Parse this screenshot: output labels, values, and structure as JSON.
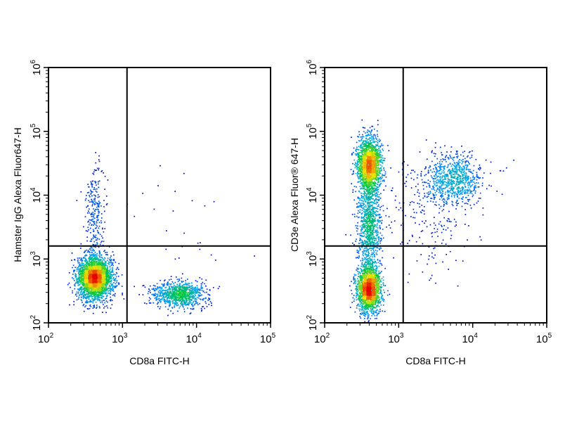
{
  "chart_data": [
    {
      "type": "scatter",
      "xlabel": "CD8a FITC-H",
      "ylabel": "Hamster IgG Alexa Fluor647-H",
      "xscale": "log",
      "yscale": "log",
      "xlim": [
        100,
        100000
      ],
      "ylim": [
        100,
        1000000
      ],
      "x_ticks": [
        {
          "base": "10",
          "exp": "2"
        },
        {
          "base": "10",
          "exp": "3"
        },
        {
          "base": "10",
          "exp": "4"
        },
        {
          "base": "10",
          "exp": "5"
        }
      ],
      "y_ticks": [
        {
          "base": "10",
          "exp": "2"
        },
        {
          "base": "10",
          "exp": "3"
        },
        {
          "base": "10",
          "exp": "4"
        },
        {
          "base": "10",
          "exp": "5"
        },
        {
          "base": "10",
          "exp": "6"
        }
      ],
      "quadrant_gates": {
        "x": 1150,
        "y": 1600
      },
      "point_style": "density-colored dots (blue low → green → yellow → red high)",
      "populations": [
        {
          "center": [
            420,
            500
          ],
          "spread_log10": [
            0.12,
            0.17
          ],
          "count": 2600
        },
        {
          "center": [
            420,
            5000
          ],
          "spread_log10": [
            0.07,
            0.4
          ],
          "count": 260
        },
        {
          "center": [
            5800,
            280
          ],
          "spread_log10": [
            0.18,
            0.1
          ],
          "count": 950
        },
        {
          "center": [
            5000,
            3500
          ],
          "spread_log10": [
            0.35,
            0.5
          ],
          "count": 25
        }
      ]
    },
    {
      "type": "scatter",
      "xlabel": "CD8a FITC-H",
      "ylabel": "CD3e Alexa Fluor® 647-H",
      "xscale": "log",
      "yscale": "log",
      "xlim": [
        100,
        100000
      ],
      "ylim": [
        100,
        1000000
      ],
      "x_ticks": [
        {
          "base": "10",
          "exp": "2"
        },
        {
          "base": "10",
          "exp": "3"
        },
        {
          "base": "10",
          "exp": "4"
        },
        {
          "base": "10",
          "exp": "5"
        }
      ],
      "y_ticks": [
        {
          "base": "10",
          "exp": "2"
        },
        {
          "base": "10",
          "exp": "3"
        },
        {
          "base": "10",
          "exp": "4"
        },
        {
          "base": "10",
          "exp": "5"
        },
        {
          "base": "10",
          "exp": "6"
        }
      ],
      "quadrant_gates": {
        "x": 1150,
        "y": 1600
      },
      "point_style": "density-colored dots (blue low → green → yellow → red high)",
      "populations": [
        {
          "center": [
            400,
            30000
          ],
          "spread_log10": [
            0.08,
            0.22
          ],
          "count": 1700
        },
        {
          "center": [
            400,
            350
          ],
          "spread_log10": [
            0.08,
            0.2
          ],
          "count": 1700
        },
        {
          "center": [
            400,
            3500
          ],
          "spread_log10": [
            0.08,
            0.35
          ],
          "count": 900
        },
        {
          "center": [
            5500,
            18000
          ],
          "spread_log10": [
            0.2,
            0.2
          ],
          "count": 800
        },
        {
          "center": [
            2500,
            5000
          ],
          "spread_log10": [
            0.3,
            0.45
          ],
          "count": 220
        }
      ]
    }
  ]
}
